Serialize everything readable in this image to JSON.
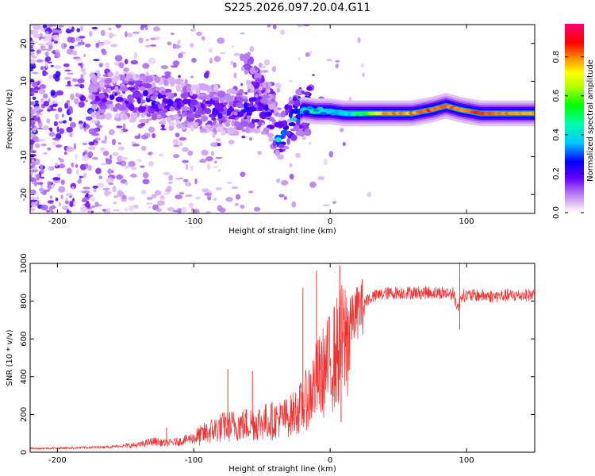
{
  "title": "S225.2026.097.20.04.G11",
  "chart_data": [
    {
      "type": "heatmap",
      "title": "S225.2026.097.20.04.G11",
      "xlabel": "Height of straight line (km)",
      "ylabel": "Frequency (Hz)",
      "xlim": [
        -220,
        150
      ],
      "ylim": [
        -25,
        25
      ],
      "xticks": [
        -200,
        -100,
        0,
        100
      ],
      "yticks": [
        -20,
        -10,
        0,
        10,
        20
      ],
      "xtick_labels": [
        "-200",
        "-100",
        "0",
        "100"
      ],
      "ytick_labels": [
        "-20",
        "-10",
        "0",
        "10",
        "20"
      ],
      "colorbar": {
        "label": "Normalized spectral amplitude",
        "range": [
          0.0,
          0.97
        ],
        "ticks": [
          0.0,
          0.2,
          0.4,
          0.6,
          0.8
        ],
        "tick_labels": [
          "0.0",
          "0.2",
          "0.4",
          "0.6",
          "0.8"
        ]
      },
      "ridge": {
        "x": [
          -170,
          -150,
          -130,
          -110,
          -90,
          -70,
          -55,
          -45,
          -38,
          -30,
          -25,
          -20,
          -10,
          0,
          10,
          25,
          40,
          60,
          75,
          85,
          95,
          110,
          130,
          150
        ],
        "y": [
          6,
          6,
          5,
          4,
          2.5,
          2,
          3,
          1.5,
          -5,
          -1,
          1,
          2.5,
          2,
          2,
          1.5,
          1.5,
          1.5,
          1.5,
          2.5,
          3.5,
          2.5,
          1.5,
          1.5,
          1.5
        ],
        "amplitude": [
          0.15,
          0.2,
          0.22,
          0.18,
          0.2,
          0.18,
          0.25,
          0.2,
          0.3,
          0.3,
          0.35,
          0.45,
          0.5,
          0.5,
          0.55,
          0.6,
          0.85,
          0.85,
          0.9,
          0.9,
          0.85,
          0.9,
          0.88,
          0.85
        ]
      }
    },
    {
      "type": "line",
      "xlabel": "Height of straight line (km)",
      "ylabel": "SNR (10 * v/v)",
      "xlim": [
        -220,
        150
      ],
      "ylim": [
        0,
        1000
      ],
      "xticks": [
        -200,
        -100,
        0,
        100
      ],
      "yticks": [
        0,
        200,
        400,
        600,
        800,
        1000
      ],
      "xtick_labels": [
        "-200",
        "-100",
        "0",
        "100"
      ],
      "ytick_labels": [
        "0",
        "200",
        "400",
        "600",
        "800",
        "1000"
      ],
      "series": [
        {
          "name": "SNR",
          "color": "#ee3333",
          "x": [
            -220,
            -200,
            -180,
            -160,
            -140,
            -130,
            -120,
            -110,
            -100,
            -90,
            -80,
            -70,
            -60,
            -50,
            -40,
            -30,
            -20,
            -15,
            -10,
            -5,
            0,
            5,
            10,
            15,
            20,
            25,
            30,
            40,
            50,
            60,
            70,
            80,
            90,
            94,
            96,
            100,
            110,
            120,
            130,
            140,
            150
          ],
          "y": [
            20,
            22,
            25,
            30,
            40,
            60,
            50,
            60,
            80,
            110,
            140,
            150,
            160,
            170,
            180,
            200,
            260,
            330,
            400,
            450,
            500,
            560,
            620,
            700,
            760,
            800,
            820,
            840,
            845,
            845,
            845,
            845,
            840,
            760,
            830,
            830,
            830,
            825,
            830,
            830,
            835
          ]
        }
      ],
      "annotations": [
        {
          "x": -120,
          "y": 130
        },
        {
          "x": -75,
          "y": 440
        },
        {
          "x": -57,
          "y": 430
        },
        {
          "x": -20,
          "y": 870
        },
        {
          "x": -10,
          "y": 960
        },
        {
          "x": 7,
          "y": 990
        },
        {
          "x": 8,
          "y": 160
        },
        {
          "x": 95,
          "y": 1000
        },
        {
          "x": 95,
          "y": 650
        }
      ]
    }
  ]
}
